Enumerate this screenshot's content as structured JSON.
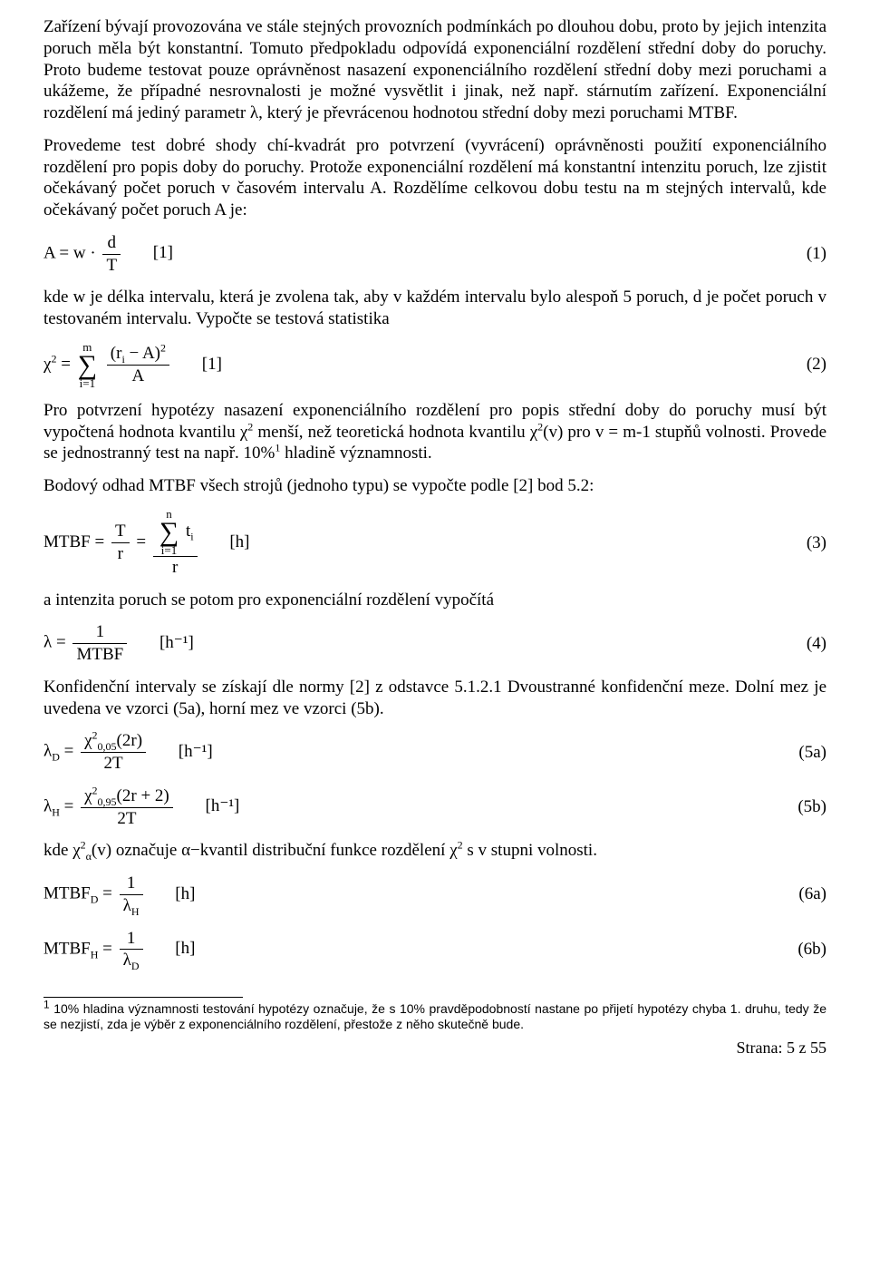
{
  "paragraphs": {
    "p1": "Zařízení bývají provozována ve stále stejných provozních podmínkách po dlouhou dobu, proto by jejich intenzita poruch měla být konstantní. Tomuto předpokladu odpovídá exponenciální rozdělení střední doby do poruchy. Proto budeme testovat pouze oprávněnost nasazení exponenciálního rozdělení střední doby mezi poruchami a ukážeme, že případné nesrovnalosti je možné vysvětlit i jinak, než např. stárnutím zařízení. Exponenciální rozdělení má jediný parametr λ, který je převrácenou hodnotou střední doby mezi poruchami MTBF.",
    "p2": "Provedeme test dobré shody chí-kvadrát pro potvrzení (vyvrácení) oprávněnosti použití exponenciálního rozdělení pro popis doby do poruchy. Protože exponenciální rozdělení má konstantní intenzitu poruch, lze zjistit očekávaný počet poruch v časovém intervalu A. Rozdělíme celkovou dobu testu na m stejných intervalů, kde očekávaný počet poruch A je:",
    "p3": "kde w je délka intervalu, která je zvolena tak, aby v každém intervalu bylo alespoň 5 poruch, d je počet poruch v testovaném intervalu. Vypočte se testová statistika",
    "p4a": "Pro potvrzení hypotézy nasazení exponenciálního rozdělení pro popis střední doby do poruchy musí být vypočtená hodnota kvantilu ",
    "p4b": " menší, než teoretická hodnota kvantilu ",
    "p4c": " pro v = m-1 stupňů volnosti. Provede se jednostranný test na např. 10%",
    "p4d": " hladině významnosti.",
    "p5": "Bodový odhad MTBF všech strojů (jednoho typu) se vypočte podle [2] bod 5.2:",
    "p6": "a intenzita poruch se potom pro exponenciální rozdělení vypočítá",
    "p7": "Konfidenční intervaly se získají dle normy [2] z odstavce 5.1.2.1 Dvoustranné konfidenční meze. Dolní mez je uvedena ve vzorci (5a), horní mez ve vzorci (5b).",
    "p8a": "kde ",
    "p8b": " označuje α−kvantil distribuční funkce rozdělení ",
    "p8c": " s v stupni volnosti."
  },
  "equations": {
    "eq1": {
      "lhs": "A = w ·",
      "num": "d",
      "den": "T",
      "unit": "[1]",
      "num_label": "(1)"
    },
    "eq2": {
      "lhs_pre": "χ",
      "sup": "2",
      "eq": " = ",
      "sum_top": "m",
      "sum_bot": "i=1",
      "num_l": "(r",
      "num_sub": "i",
      "num_r": " − A)",
      "num_sup": "2",
      "den": "A",
      "unit": "[1]",
      "num_label": "(2)"
    },
    "eq3": {
      "lhs": "MTBF = ",
      "f1_num": "T",
      "f1_den": "r",
      "mid": " = ",
      "sum_top": "n",
      "sum_bot": "i=1",
      "sum_body": "t",
      "sum_body_sub": "i",
      "f2_den": "r",
      "unit": "[h]",
      "num_label": "(3)"
    },
    "eq4": {
      "lhs": "λ = ",
      "num": "1",
      "den": "MTBF",
      "unit": "[h⁻¹]",
      "num_label": "(4)"
    },
    "eq5a": {
      "lhs_pre": "λ",
      "lhs_sub": "D",
      "eq": " = ",
      "num_pre": "χ",
      "num_sup": "2",
      "num_sub": "0,05",
      "num_post": "(2r)",
      "den": "2T",
      "unit": "[h⁻¹]",
      "num_label": "(5a)"
    },
    "eq5b": {
      "lhs_pre": "λ",
      "lhs_sub": "H",
      "eq": " = ",
      "num_pre": "χ",
      "num_sup": "2",
      "num_sub": "0,95",
      "num_post": "(2r + 2)",
      "den": "2T",
      "unit": "[h⁻¹]",
      "num_label": "(5b)"
    },
    "eq6a": {
      "lhs_pre": "MTBF",
      "lhs_sub": "D",
      "eq": " = ",
      "num": "1",
      "den_pre": "λ",
      "den_sub": "H",
      "unit": "[h]",
      "num_label": "(6a)"
    },
    "eq6b": {
      "lhs_pre": "MTBF",
      "lhs_sub": "H",
      "eq": " = ",
      "num": "1",
      "den_pre": "λ",
      "den_sub": "D",
      "unit": "[h]",
      "num_label": "(6b)"
    }
  },
  "inline": {
    "chi2": "χ",
    "chi2_sup": "2",
    "chi2v": "χ",
    "chi2v_post": "(v)",
    "chi2a_sub": "α",
    "fn_sup": "1"
  },
  "footnote": {
    "marker": "1",
    "text": " 10% hladina významnosti testování hypotézy označuje, že s 10% pravděpodobností nastane po přijetí hypotézy chyba 1. druhu, tedy že se nezjistí, zda je výběr z exponenciálního rozdělení, přestože z něho skutečně bude."
  },
  "page_label": "Strana:  5 z 55"
}
